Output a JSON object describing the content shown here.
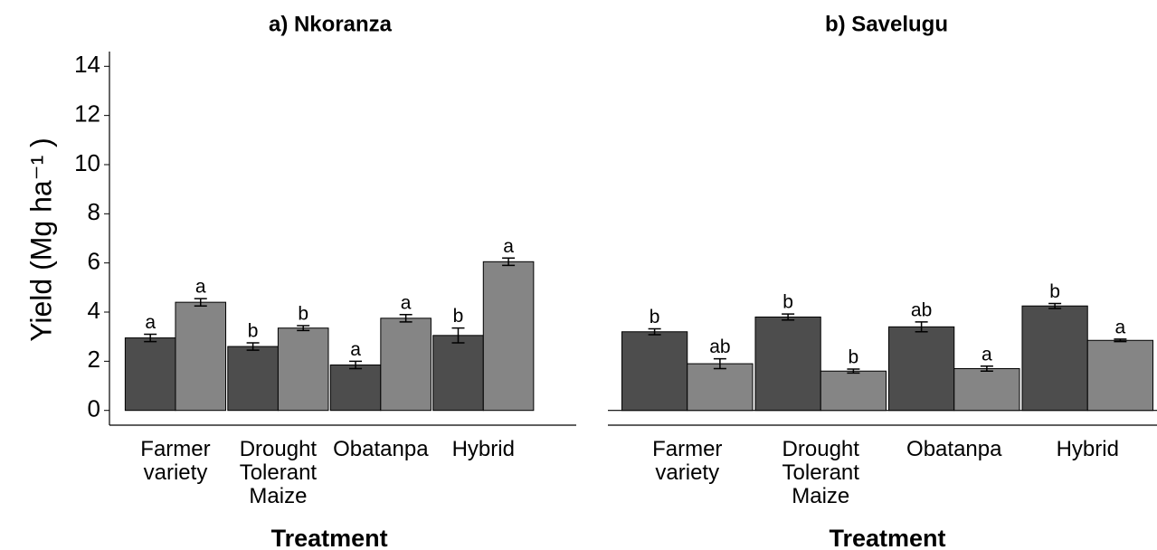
{
  "chart_data": [
    {
      "type": "bar",
      "title": "a) Nkoranza",
      "y_label": "Yield (Mg ha⁻¹ )",
      "x_label": "Treatment",
      "categories": [
        "Farmer variety",
        "Drought Tolerant Maize",
        "Obatanpa",
        "Hybrid"
      ],
      "series": [
        {
          "color": "#4d4d4d",
          "values": [
            2.95,
            2.6,
            1.85,
            3.05
          ],
          "errors": [
            0.15,
            0.15,
            0.15,
            0.3
          ],
          "letters": [
            "a",
            "b",
            "a",
            "b"
          ]
        },
        {
          "color": "#858585",
          "values": [
            4.4,
            3.35,
            3.75,
            6.05
          ],
          "errors": [
            0.15,
            0.1,
            0.15,
            0.15
          ],
          "letters": [
            "a",
            "b",
            "a",
            "a"
          ]
        }
      ],
      "ylim": [
        -0.6,
        14.6
      ],
      "yticks": [
        0,
        2,
        4,
        6,
        8,
        10,
        12,
        14
      ]
    },
    {
      "type": "bar",
      "title": "b) Savelugu",
      "x_label": "Treatment",
      "categories": [
        "Farmer variety",
        "Drought Tolerant Maize",
        "Obatanpa",
        "Hybrid"
      ],
      "series": [
        {
          "color": "#4d4d4d",
          "values": [
            3.2,
            3.8,
            3.4,
            4.25
          ],
          "errors": [
            0.12,
            0.12,
            0.2,
            0.1
          ],
          "letters": [
            "b",
            "b",
            "ab",
            "b"
          ]
        },
        {
          "color": "#858585",
          "values": [
            1.9,
            1.6,
            1.7,
            2.85
          ],
          "errors": [
            0.2,
            0.08,
            0.1,
            0.05
          ],
          "letters": [
            "ab",
            "b",
            "a",
            "a"
          ]
        }
      ],
      "ylim": [
        -0.6,
        14.6
      ]
    }
  ]
}
